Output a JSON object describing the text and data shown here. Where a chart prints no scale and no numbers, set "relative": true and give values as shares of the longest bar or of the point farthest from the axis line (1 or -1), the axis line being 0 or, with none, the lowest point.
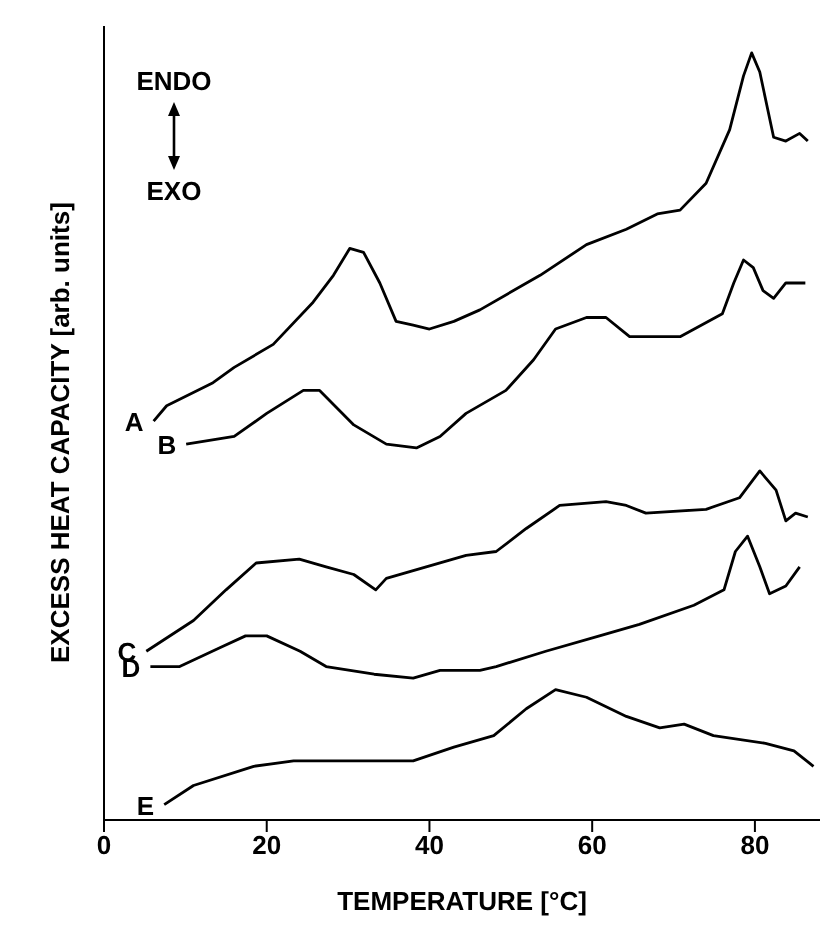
{
  "chart_data": {
    "type": "line",
    "relative": true,
    "xlabel": "TEMPERATURE [°C]",
    "ylabel": "EXCESS HEAT CAPACITY  [arb. units]",
    "xlim": [
      0,
      88
    ],
    "xticks": [
      0,
      20,
      40,
      60,
      80
    ],
    "legend": false,
    "grid": false,
    "marker": "none",
    "line_style": "solid",
    "annotations": [
      "ENDO",
      "EXO"
    ],
    "series": [
      {
        "name": "A",
        "color": "#000000",
        "x": [
          6.1,
          7.7,
          13.4,
          16,
          20.8,
          25.7,
          28.2,
          30.2,
          31.9,
          33.9,
          35.9,
          38,
          40,
          43,
          46.2,
          53.6,
          59.3,
          64.2,
          68,
          70.8,
          74,
          76.9,
          78.6,
          79.6,
          80.6,
          82.3,
          83.8,
          85.5,
          86.5
        ],
        "values": [
          0.52,
          0.54,
          0.57,
          0.59,
          0.62,
          0.675,
          0.71,
          0.745,
          0.74,
          0.7,
          0.65,
          0.645,
          0.64,
          0.65,
          0.665,
          0.71,
          0.75,
          0.77,
          0.79,
          0.795,
          0.83,
          0.9,
          0.97,
          1.0,
          0.975,
          0.89,
          0.885,
          0.895,
          0.885
        ]
      },
      {
        "name": "B",
        "color": "#000000",
        "x": [
          10.1,
          16,
          20,
          24.5,
          26.5,
          30.7,
          34.7,
          38.4,
          41.3,
          44.5,
          49.4,
          52.8,
          55.5,
          59.3,
          61.7,
          64.6,
          70.8,
          76,
          77.4,
          78.6,
          79.8,
          81,
          82.3,
          83.8,
          86.2
        ],
        "values": [
          0.49,
          0.5,
          0.53,
          0.56,
          0.56,
          0.515,
          0.49,
          0.485,
          0.5,
          0.53,
          0.56,
          0.6,
          0.64,
          0.655,
          0.655,
          0.63,
          0.63,
          0.66,
          0.7,
          0.73,
          0.72,
          0.69,
          0.68,
          0.7,
          0.7
        ]
      },
      {
        "name": "C",
        "color": "#000000",
        "x": [
          5.2,
          11,
          15,
          18.7,
          24,
          27.3,
          30.7,
          33.4,
          34.7,
          39.6,
          44.5,
          48.2,
          51.9,
          56,
          61.7,
          64.2,
          66.6,
          74,
          78.1,
          80.6,
          82.6,
          83.8,
          85,
          86.5
        ],
        "values": [
          0.22,
          0.26,
          0.3,
          0.335,
          0.34,
          0.33,
          0.32,
          0.3,
          0.315,
          0.33,
          0.345,
          0.35,
          0.38,
          0.41,
          0.415,
          0.41,
          0.4,
          0.405,
          0.42,
          0.455,
          0.43,
          0.39,
          0.4,
          0.395
        ]
      },
      {
        "name": "D",
        "color": "#000000",
        "x": [
          5.7,
          9.3,
          14.3,
          17.4,
          20,
          24.1,
          27.3,
          33.2,
          38,
          41.3,
          46.2,
          48.2,
          54.3,
          60.9,
          65.8,
          72.5,
          76.2,
          77.6,
          79.1,
          80.6,
          81.8,
          83.8,
          85.5
        ],
        "values": [
          0.2,
          0.2,
          0.225,
          0.24,
          0.24,
          0.22,
          0.2,
          0.19,
          0.185,
          0.195,
          0.195,
          0.2,
          0.22,
          0.24,
          0.255,
          0.28,
          0.3,
          0.35,
          0.37,
          0.33,
          0.295,
          0.305,
          0.33
        ]
      },
      {
        "name": "E",
        "color": "#000000",
        "x": [
          7.4,
          11,
          18.4,
          23.3,
          29.7,
          38,
          43,
          47.9,
          51.9,
          55.5,
          59.3,
          64.2,
          68.3,
          71.3,
          74.9,
          81.3,
          84.8,
          87.2
        ],
        "values": [
          0.02,
          0.045,
          0.07,
          0.077,
          0.077,
          0.077,
          0.095,
          0.11,
          0.145,
          0.17,
          0.16,
          0.135,
          0.12,
          0.125,
          0.11,
          0.1,
          0.09,
          0.07
        ]
      }
    ]
  }
}
